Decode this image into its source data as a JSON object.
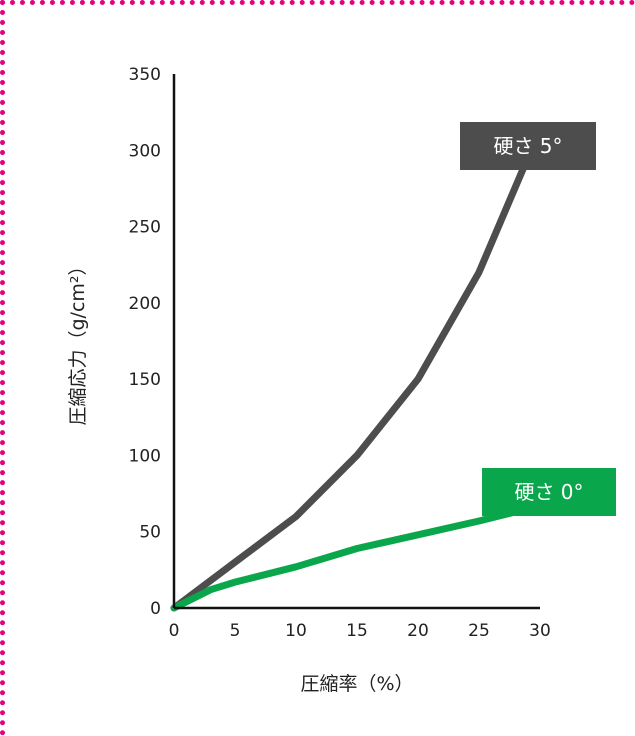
{
  "chart_data": {
    "type": "line",
    "xlabel": "圧縮率（%）",
    "ylabel": "圧縮応力（g/cm²）",
    "xlim": [
      0,
      30
    ],
    "ylim": [
      0,
      350
    ],
    "xticks": [
      0,
      5,
      10,
      15,
      20,
      25,
      30
    ],
    "yticks": [
      0,
      50,
      100,
      150,
      200,
      250,
      300,
      350
    ],
    "grid": false,
    "legend": "direct labels at series ends",
    "series": [
      {
        "name": "硬さ 5°",
        "color": "#4d4d4d",
        "x": [
          0,
          5,
          10,
          15,
          20,
          25,
          29
        ],
        "y": [
          0,
          30,
          60,
          100,
          150,
          220,
          295
        ]
      },
      {
        "name": "硬さ 0°",
        "color": "#0aa64b",
        "x": [
          0,
          3,
          5,
          10,
          15,
          20,
          25,
          29
        ],
        "y": [
          0,
          12,
          17,
          27,
          39,
          48,
          57,
          65
        ]
      }
    ]
  }
}
